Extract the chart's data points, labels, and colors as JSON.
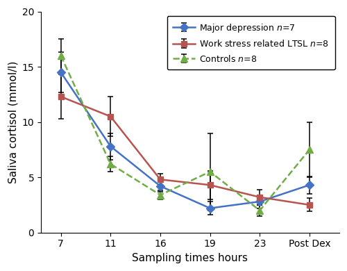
{
  "x_labels": [
    "7",
    "11",
    "16",
    "19",
    "23",
    "Post Dex"
  ],
  "x_positions": [
    0,
    1,
    2,
    3,
    4,
    5
  ],
  "series": [
    {
      "label": "Major depression $\\it{n}$=7",
      "color": "#4472C4",
      "marker": "D",
      "markersize": 6,
      "linewidth": 1.8,
      "linestyle": "-",
      "y": [
        14.5,
        7.8,
        4.2,
        2.2,
        2.8,
        4.3
      ],
      "yerr": [
        1.8,
        1.2,
        0.5,
        0.6,
        0.6,
        0.8
      ]
    },
    {
      "label": "Work stress related LTSL $\\it{n}$=8",
      "color": "#B85450",
      "marker": "s",
      "markersize": 6,
      "linewidth": 1.8,
      "linestyle": "-",
      "y": [
        12.3,
        10.5,
        4.8,
        4.3,
        3.2,
        2.5
      ],
      "yerr": [
        2.0,
        1.8,
        0.5,
        1.3,
        0.7,
        0.6
      ]
    },
    {
      "label": "Controls $\\it{n}$=8",
      "color": "#70AD47",
      "marker": "^",
      "markersize": 7,
      "linewidth": 1.8,
      "linestyle": "--",
      "y": [
        16.0,
        6.2,
        3.4,
        5.5,
        2.0,
        7.5
      ],
      "yerr": [
        1.5,
        0.7,
        0.4,
        3.5,
        0.5,
        2.5
      ]
    }
  ],
  "xlabel": "Sampling times hours",
  "ylabel": "Saliva cortisol (mmol/l)",
  "ylim": [
    0,
    20
  ],
  "yticks": [
    0,
    5,
    10,
    15,
    20
  ],
  "figure_bg": "#ffffff",
  "capsize": 3
}
